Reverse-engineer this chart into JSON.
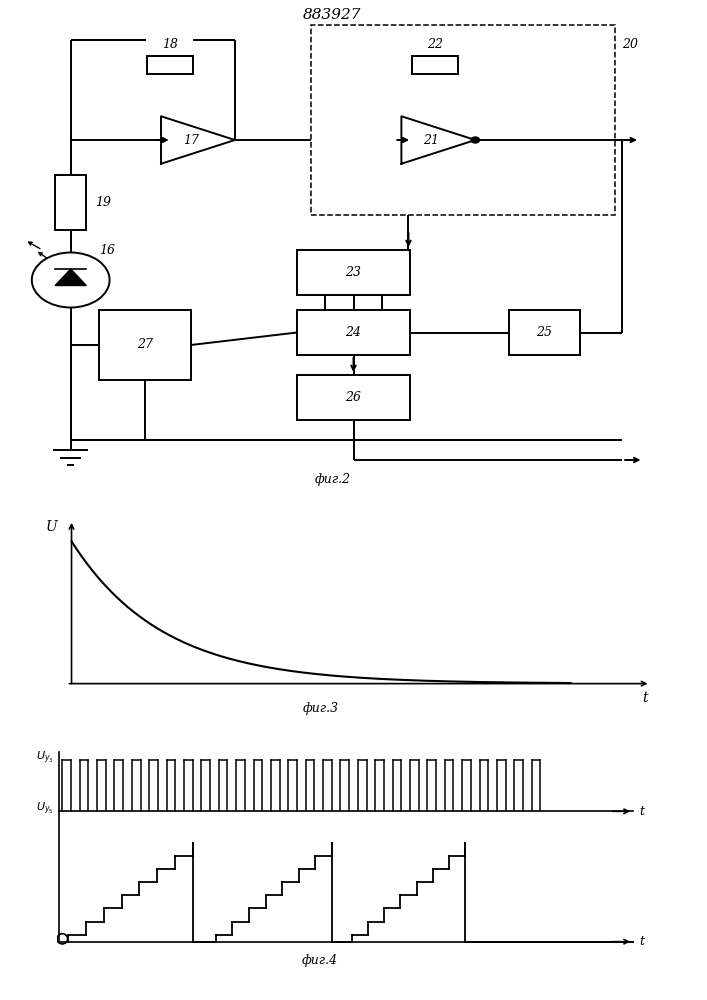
{
  "title": "883927",
  "fig2_label": "фиг.2",
  "fig3_label": "фиг.3",
  "fig4_label": "фиг.4",
  "bg_color": "#ffffff",
  "lc": "#000000",
  "lw": 1.4,
  "fs": 9,
  "fs_title": 11
}
